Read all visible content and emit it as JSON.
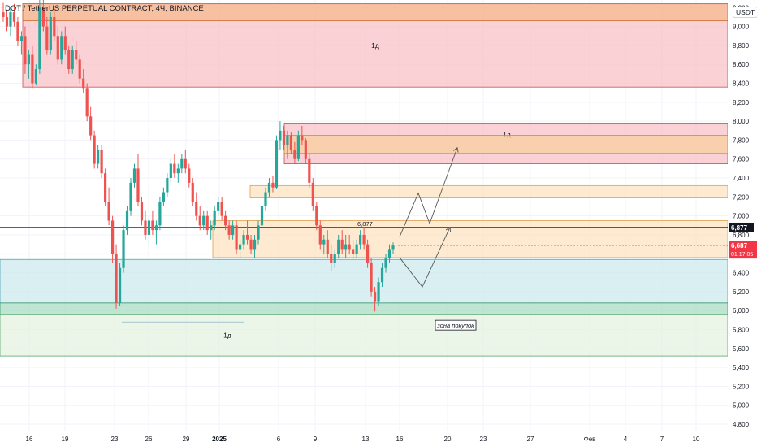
{
  "header": {
    "symbol_title": "DOT / TetherUS PERPETUAL CONTRACT, 4Ч, BINANCE"
  },
  "currency": "USDT",
  "colors": {
    "up": "#26a69a",
    "down": "#ef5350",
    "axis_text": "#131722",
    "grid": "#f0f3fa",
    "hline": "#000000",
    "current_price_bg": "#f23645"
  },
  "chart_data": {
    "type": "candlestick",
    "ylim": [
      4800,
      9400
    ],
    "y_ticks": [
      "9,200",
      "9,000",
      "8,800",
      "8,600",
      "8,400",
      "8,200",
      "8,000",
      "7,800",
      "7,600",
      "7,400",
      "7,200",
      "7,000",
      "6,800",
      "6,600",
      "6,400",
      "6,200",
      "6,000",
      "5,800",
      "5,600",
      "5,400",
      "5,200",
      "5,000",
      "4,800"
    ],
    "x_ticks": [
      "16",
      "19",
      "23",
      "26",
      "29",
      "2025",
      "6",
      "9",
      "13",
      "16",
      "20",
      "23",
      "27",
      "Фев",
      "4",
      "7",
      "10"
    ],
    "horizontal_line": {
      "value": 6877,
      "label": "6,877"
    },
    "current_price": {
      "value": "6,687",
      "countdown": "01:17:05"
    },
    "zones": [
      {
        "label": "1д",
        "y1": 9240,
        "y2": 8360,
        "fill": "#f8c2c7",
        "edge": "#c94b55"
      },
      {
        "label": "",
        "y1": 9240,
        "y2": 9060,
        "fill": "#f6b98f",
        "edge": "#c96d3a"
      },
      {
        "label": "1д",
        "y1": 7980,
        "y2": 7550,
        "fill": "#f8c2c7",
        "edge": "#c94b55"
      },
      {
        "label": "",
        "y1": 7850,
        "y2": 7660,
        "fill": "#f7cf9f",
        "edge": "#d08a3a"
      },
      {
        "label": "",
        "y1": 7320,
        "y2": 7190,
        "fill": "#fde3c0",
        "edge": "#e0a050"
      },
      {
        "label": "",
        "y1": 6950,
        "y2": 6560,
        "fill": "#fde3c0",
        "edge": "#e0a050"
      },
      {
        "label": "",
        "y1": 6540,
        "y2": 6080,
        "fill": "#cce9ee",
        "edge": "#4aa3b3"
      },
      {
        "label": "",
        "y1": 6080,
        "y2": 5960,
        "fill": "#a9dcc4",
        "edge": "#3c9a6e"
      },
      {
        "label": "1д",
        "y1": 5960,
        "y2": 5520,
        "fill": "#e4f3e0",
        "edge": "#5aa56a"
      }
    ],
    "annotation_box": "зона покупок",
    "candles_ohlc": [
      [
        9150,
        9250,
        9050,
        9100
      ],
      [
        9100,
        9180,
        8950,
        9000
      ],
      [
        9000,
        9200,
        8900,
        9150
      ],
      [
        9150,
        9240,
        9000,
        9050
      ],
      [
        9050,
        9100,
        8800,
        8850
      ],
      [
        8850,
        8950,
        8700,
        8900
      ],
      [
        8900,
        9000,
        8500,
        8600
      ],
      [
        8600,
        8750,
        8450,
        8700
      ],
      [
        8700,
        8800,
        8350,
        8400
      ],
      [
        8400,
        8600,
        8380,
        8550
      ],
      [
        8550,
        9300,
        8500,
        9200
      ],
      [
        9200,
        9280,
        8950,
        9000
      ],
      [
        9000,
        9100,
        8700,
        8750
      ],
      [
        8750,
        9150,
        8700,
        9100
      ],
      [
        9100,
        9200,
        8850,
        8900
      ],
      [
        8900,
        9000,
        8600,
        8650
      ],
      [
        8650,
        8950,
        8600,
        8900
      ],
      [
        8900,
        9000,
        8700,
        8750
      ],
      [
        8750,
        8800,
        8500,
        8550
      ],
      [
        8550,
        8800,
        8500,
        8750
      ],
      [
        8750,
        8850,
        8600,
        8650
      ],
      [
        8650,
        8700,
        8400,
        8450
      ],
      [
        8450,
        8550,
        8300,
        8350
      ],
      [
        8350,
        8400,
        8000,
        8050
      ],
      [
        8050,
        8150,
        7800,
        7850
      ],
      [
        7850,
        7900,
        7500,
        7550
      ],
      [
        7550,
        7750,
        7500,
        7700
      ],
      [
        7700,
        7750,
        7400,
        7450
      ],
      [
        7450,
        7500,
        7100,
        7150
      ],
      [
        7150,
        7300,
        6900,
        6950
      ],
      [
        6950,
        7000,
        6500,
        6600
      ],
      [
        6600,
        6700,
        6020,
        6080
      ],
      [
        6080,
        6500,
        6050,
        6450
      ],
      [
        6450,
        6900,
        6400,
        6850
      ],
      [
        6850,
        7100,
        6800,
        7050
      ],
      [
        7050,
        7400,
        7000,
        7350
      ],
      [
        7350,
        7550,
        7300,
        7500
      ],
      [
        7500,
        7650,
        7100,
        7150
      ],
      [
        7150,
        7200,
        6900,
        6950
      ],
      [
        6950,
        7050,
        6750,
        6800
      ],
      [
        6800,
        7000,
        6700,
        6950
      ],
      [
        6950,
        7050,
        6800,
        6850
      ],
      [
        6850,
        6950,
        6700,
        6900
      ],
      [
        6900,
        7200,
        6850,
        7150
      ],
      [
        7150,
        7300,
        7100,
        7250
      ],
      [
        7250,
        7450,
        7200,
        7400
      ],
      [
        7400,
        7600,
        7350,
        7550
      ],
      [
        7550,
        7650,
        7400,
        7450
      ],
      [
        7450,
        7550,
        7350,
        7500
      ],
      [
        7500,
        7650,
        7450,
        7600
      ],
      [
        7600,
        7700,
        7450,
        7500
      ],
      [
        7500,
        7550,
        7300,
        7350
      ],
      [
        7350,
        7400,
        7100,
        7150
      ],
      [
        7150,
        7250,
        6950,
        7000
      ],
      [
        7000,
        7100,
        6850,
        6900
      ],
      [
        6900,
        7050,
        6850,
        7000
      ],
      [
        7000,
        7050,
        6800,
        6850
      ],
      [
        6850,
        6950,
        6750,
        6900
      ],
      [
        6900,
        7100,
        6850,
        7050
      ],
      [
        7050,
        7200,
        7000,
        7150
      ],
      [
        7150,
        7200,
        6950,
        7000
      ],
      [
        7000,
        7050,
        6850,
        6900
      ],
      [
        6900,
        6950,
        6750,
        6800
      ],
      [
        6800,
        6950,
        6750,
        6900
      ],
      [
        6900,
        6950,
        6600,
        6650
      ],
      [
        6650,
        6750,
        6550,
        6700
      ],
      [
        6700,
        6850,
        6650,
        6800
      ],
      [
        6800,
        6950,
        6700,
        6750
      ],
      [
        6750,
        6800,
        6600,
        6650
      ],
      [
        6650,
        6800,
        6550,
        6750
      ],
      [
        6750,
        6950,
        6700,
        6900
      ],
      [
        6900,
        7150,
        6850,
        7100
      ],
      [
        7100,
        7300,
        7050,
        7250
      ],
      [
        7250,
        7400,
        7200,
        7350
      ],
      [
        7350,
        7420,
        7250,
        7300
      ],
      [
        7300,
        7850,
        7280,
        7800
      ],
      [
        7800,
        8000,
        7700,
        7900
      ],
      [
        7900,
        7950,
        7700,
        7750
      ],
      [
        7750,
        7900,
        7600,
        7850
      ],
      [
        7850,
        7880,
        7650,
        7700
      ],
      [
        7700,
        7780,
        7550,
        7600
      ],
      [
        7600,
        7900,
        7580,
        7850
      ],
      [
        7850,
        7950,
        7750,
        7800
      ],
      [
        7800,
        7820,
        7550,
        7600
      ],
      [
        7600,
        7650,
        7300,
        7350
      ],
      [
        7350,
        7400,
        7050,
        7100
      ],
      [
        7100,
        7150,
        6850,
        6900
      ],
      [
        6900,
        6950,
        6650,
        6700
      ],
      [
        6700,
        6800,
        6600,
        6750
      ],
      [
        6750,
        6850,
        6550,
        6600
      ],
      [
        6600,
        6700,
        6420,
        6500
      ],
      [
        6500,
        6650,
        6450,
        6600
      ],
      [
        6600,
        6800,
        6550,
        6750
      ],
      [
        6750,
        6850,
        6600,
        6650
      ],
      [
        6650,
        6800,
        6550,
        6700
      ],
      [
        6700,
        6800,
        6600,
        6650
      ],
      [
        6650,
        6750,
        6550,
        6600
      ],
      [
        6600,
        6750,
        6550,
        6700
      ],
      [
        6700,
        6850,
        6650,
        6800
      ],
      [
        6800,
        6880,
        6650,
        6700
      ],
      [
        6700,
        6750,
        6450,
        6500
      ],
      [
        6500,
        6550,
        6150,
        6200
      ],
      [
        6200,
        6250,
        5990,
        6100
      ],
      [
        6100,
        6350,
        6050,
        6300
      ],
      [
        6300,
        6500,
        6250,
        6450
      ],
      [
        6450,
        6600,
        6400,
        6550
      ],
      [
        6550,
        6700,
        6500,
        6650
      ],
      [
        6650,
        6720,
        6600,
        6687
      ]
    ],
    "projection_paths": [
      [
        [
          16.5,
          6780
        ],
        [
          17.7,
          7240
        ],
        [
          18.3,
          6920
        ],
        [
          19.5,
          7720
        ]
      ],
      [
        [
          16.5,
          6560
        ],
        [
          17.3,
          6250
        ],
        [
          18.7,
          6880
        ]
      ]
    ]
  }
}
